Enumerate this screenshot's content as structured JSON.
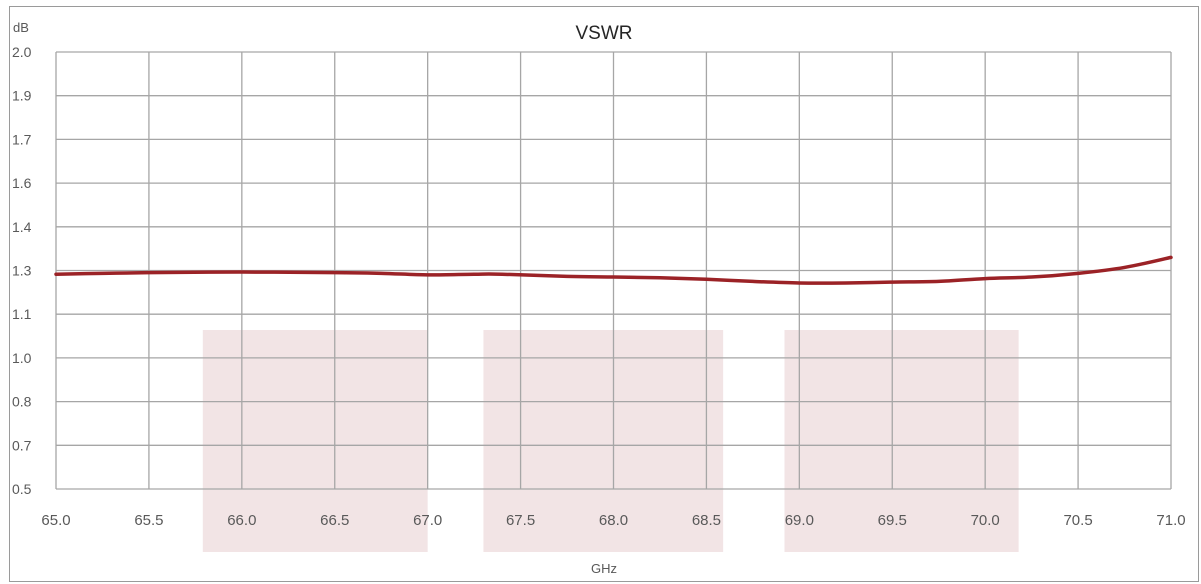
{
  "chart_data": {
    "type": "line",
    "title": "VSWR",
    "ylabel": "dB",
    "xlabel": "GHz",
    "x_ticks": [
      "65.0",
      "65.5",
      "66.0",
      "66.5",
      "67.0",
      "67.5",
      "68.0",
      "68.5",
      "69.0",
      "69.5",
      "70.0",
      "70.5",
      "71.0"
    ],
    "y_ticks": [
      "0.5",
      "0.7",
      "0.8",
      "1.0",
      "1.1",
      "1.3",
      "1.4",
      "1.6",
      "1.7",
      "1.9",
      "2.0"
    ],
    "xlim": [
      65.0,
      71.0
    ],
    "ylim": [
      0.5,
      2.0
    ],
    "grid": true,
    "colors": {
      "line": "#9b2226",
      "band": "#f2e4e5",
      "grid": "#a6a6a6"
    },
    "bands": [
      {
        "x_start": 65.79,
        "x_end": 67.0
      },
      {
        "x_start": 67.3,
        "x_end": 68.59
      },
      {
        "x_start": 68.92,
        "x_end": 70.18
      }
    ],
    "series": [
      {
        "x": [
          65.0,
          65.25,
          65.5,
          66.0,
          66.5,
          66.75,
          67.0,
          67.25,
          67.4,
          67.75,
          68.0,
          68.25,
          68.5,
          68.75,
          69.0,
          69.25,
          69.5,
          69.75,
          70.0,
          70.25,
          70.5,
          70.75,
          71.0
        ],
        "y": [
          1.283,
          1.287,
          1.29,
          1.293,
          1.29,
          1.287,
          1.28,
          1.283,
          1.283,
          1.273,
          1.27,
          1.267,
          1.26,
          1.25,
          1.243,
          1.243,
          1.247,
          1.25,
          1.263,
          1.27,
          1.287,
          1.307,
          1.33
        ]
      }
    ]
  }
}
